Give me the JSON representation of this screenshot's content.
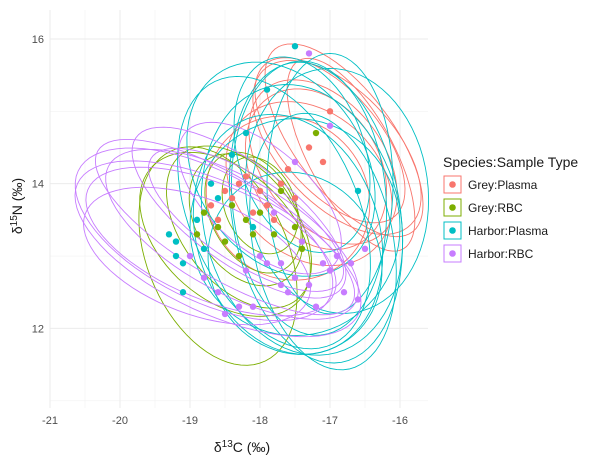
{
  "chart_data": {
    "type": "scatter",
    "title": "",
    "xlabel": {
      "base": "δ",
      "sup": "13",
      "rest": "C (‰)"
    },
    "ylabel": {
      "base": "δ",
      "sup": "15",
      "rest": "N (‰)"
    },
    "xlim": [
      -21.0,
      -15.6
    ],
    "ylim": [
      10.9,
      16.4
    ],
    "xticks": [
      -21,
      -20,
      -19,
      -18,
      -17,
      -16
    ],
    "yticks": [
      12,
      14,
      16
    ],
    "grid": true,
    "legend": {
      "title": "Species:Sample Type",
      "placement": "right",
      "entries": [
        "Grey:Plasma",
        "Grey:RBC",
        "Harbor:Plasma",
        "Harbor:RBC"
      ]
    },
    "series": [
      {
        "name": "Grey:Plasma",
        "color": "#F8766D",
        "points": [
          [
            -18.7,
            13.7
          ],
          [
            -18.5,
            13.9
          ],
          [
            -18.4,
            13.8
          ],
          [
            -18.3,
            14.0
          ],
          [
            -18.2,
            14.1
          ],
          [
            -18.1,
            13.6
          ],
          [
            -18.0,
            13.9
          ],
          [
            -17.9,
            13.7
          ],
          [
            -17.8,
            13.5
          ],
          [
            -17.6,
            14.2
          ],
          [
            -17.5,
            13.8
          ],
          [
            -17.3,
            14.5
          ],
          [
            -17.1,
            14.3
          ],
          [
            -17.0,
            15.0
          ],
          [
            -18.6,
            13.5
          ],
          [
            -17.7,
            14.0
          ]
        ],
        "ellipses": [
          [
            -17.1,
            14.3,
            0.85,
            1.3,
            40
          ],
          [
            -16.9,
            14.5,
            0.8,
            1.5,
            45
          ],
          [
            -16.8,
            14.6,
            0.7,
            1.6,
            38
          ],
          [
            -17.2,
            14.2,
            0.9,
            1.2,
            35
          ],
          [
            -16.7,
            14.4,
            0.6,
            1.5,
            30
          ],
          [
            -17.3,
            14.0,
            1.0,
            1.3,
            50
          ],
          [
            -17.0,
            14.6,
            0.7,
            1.4,
            42
          ],
          [
            -17.6,
            13.8,
            1.1,
            1.2,
            55
          ]
        ]
      },
      {
        "name": "Grey:RBC",
        "color": "#7CAE00",
        "points": [
          [
            -18.9,
            13.3
          ],
          [
            -18.8,
            13.6
          ],
          [
            -18.6,
            13.4
          ],
          [
            -18.5,
            13.2
          ],
          [
            -18.4,
            13.7
          ],
          [
            -18.2,
            13.5
          ],
          [
            -18.1,
            13.3
          ],
          [
            -18.0,
            13.6
          ],
          [
            -17.8,
            13.3
          ],
          [
            -17.7,
            13.9
          ],
          [
            -17.5,
            13.4
          ],
          [
            -17.4,
            13.1
          ],
          [
            -17.2,
            14.7
          ],
          [
            -18.3,
            13.0
          ]
        ],
        "ellipses": [
          [
            -18.1,
            13.6,
            0.6,
            0.9,
            30
          ],
          [
            -18.3,
            13.4,
            0.8,
            1.3,
            40
          ],
          [
            -18.0,
            13.7,
            0.5,
            0.7,
            25
          ],
          [
            -18.5,
            13.3,
            0.9,
            1.4,
            50
          ],
          [
            -18.2,
            13.5,
            0.7,
            1.0,
            35
          ],
          [
            -18.6,
            13.0,
            1.0,
            1.6,
            25
          ]
        ]
      },
      {
        "name": "Harbor:Plasma",
        "color": "#00BFC4",
        "points": [
          [
            -19.3,
            13.3
          ],
          [
            -19.2,
            13.0
          ],
          [
            -19.1,
            12.9
          ],
          [
            -19.1,
            12.5
          ],
          [
            -18.9,
            13.5
          ],
          [
            -18.8,
            13.1
          ],
          [
            -18.6,
            13.8
          ],
          [
            -18.4,
            14.4
          ],
          [
            -18.2,
            14.7
          ],
          [
            -18.1,
            13.4
          ],
          [
            -17.9,
            15.3
          ],
          [
            -17.5,
            15.9
          ],
          [
            -16.6,
            13.9
          ],
          [
            -19.2,
            13.2
          ],
          [
            -18.7,
            14.0
          ]
        ],
        "ellipses": [
          [
            -17.4,
            13.5,
            1.4,
            1.9,
            15
          ],
          [
            -17.2,
            13.6,
            1.2,
            2.1,
            10
          ],
          [
            -17.6,
            13.3,
            1.3,
            1.7,
            20
          ],
          [
            -17.3,
            13.8,
            1.1,
            1.9,
            5
          ],
          [
            -17.0,
            14.0,
            0.9,
            1.8,
            0
          ],
          [
            -17.5,
            13.4,
            1.5,
            1.5,
            30
          ],
          [
            -17.8,
            13.6,
            1.2,
            2.0,
            25
          ],
          [
            -17.1,
            13.2,
            1.0,
            1.8,
            12
          ],
          [
            -17.7,
            14.2,
            1.2,
            1.6,
            35
          ],
          [
            -16.9,
            13.9,
            1.3,
            1.7,
            8
          ],
          [
            -17.5,
            12.9,
            1.2,
            1.3,
            40
          ],
          [
            -17.4,
            14.4,
            0.9,
            1.4,
            20
          ]
        ]
      },
      {
        "name": "Harbor:RBC",
        "color": "#C77CFF",
        "points": [
          [
            -19.0,
            13.0
          ],
          [
            -18.8,
            12.7
          ],
          [
            -18.6,
            12.5
          ],
          [
            -18.5,
            12.2
          ],
          [
            -18.2,
            12.8
          ],
          [
            -18.0,
            13.0
          ],
          [
            -17.9,
            12.9
          ],
          [
            -17.7,
            12.6
          ],
          [
            -17.6,
            12.5
          ],
          [
            -17.5,
            12.7
          ],
          [
            -17.3,
            12.6
          ],
          [
            -17.2,
            12.3
          ],
          [
            -17.0,
            12.8
          ],
          [
            -16.9,
            13.0
          ],
          [
            -16.8,
            12.5
          ],
          [
            -16.6,
            12.4
          ],
          [
            -17.4,
            13.2
          ],
          [
            -18.3,
            12.3
          ],
          [
            -17.1,
            12.9
          ],
          [
            -16.5,
            13.1
          ],
          [
            -17.8,
            13.6
          ],
          [
            -17.5,
            14.3
          ],
          [
            -17.3,
            15.8
          ],
          [
            -17.0,
            14.8
          ],
          [
            -16.7,
            12.9
          ],
          [
            -18.1,
            12.3
          ],
          [
            -17.7,
            12.9
          ]
        ],
        "ellipses": [
          [
            -18.4,
            13.3,
            0.8,
            2.0,
            62
          ],
          [
            -18.6,
            13.1,
            0.9,
            2.2,
            66
          ],
          [
            -18.5,
            13.4,
            0.7,
            2.1,
            60
          ],
          [
            -18.7,
            13.2,
            0.8,
            1.9,
            68
          ],
          [
            -18.3,
            13.6,
            0.7,
            1.8,
            55
          ],
          [
            -18.9,
            13.0,
            0.8,
            1.7,
            70
          ],
          [
            -18.2,
            13.5,
            0.6,
            1.6,
            58
          ],
          [
            -18.8,
            13.3,
            0.9,
            2.0,
            64
          ],
          [
            -18.0,
            13.8,
            0.7,
            1.4,
            50
          ]
        ]
      }
    ]
  }
}
